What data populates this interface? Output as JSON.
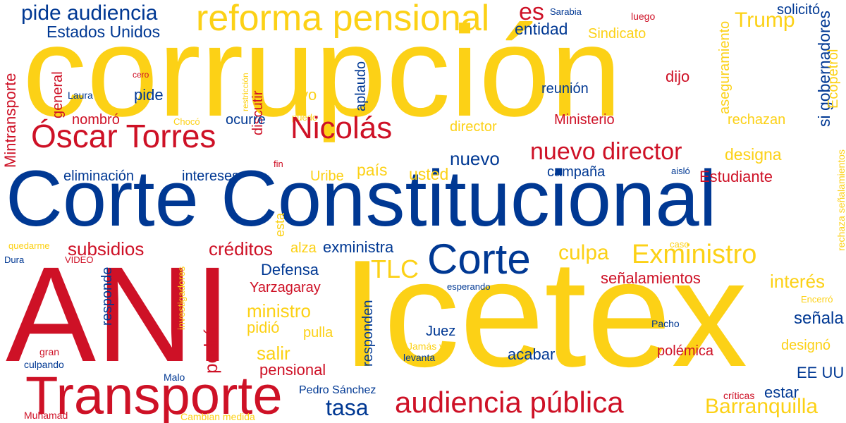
{
  "colors": {
    "yellow": "#fcd116",
    "blue": "#003893",
    "red": "#ce1126"
  },
  "words": {
    "corrupcion": "corrupción",
    "corte_constitucional": "Corte Constitucional",
    "ani": "ANI",
    "icetex": "Icetex",
    "transporte": "Transporte",
    "reforma_pensional": "reforma pensional",
    "pide_audiencia": "pide audiencia",
    "estados_unidos": "Estados Unidos",
    "es": "es",
    "sarabia": "Sarabia",
    "luego": "luego",
    "solicito": "solicitó",
    "trump": "Trump",
    "entidad": "entidad",
    "sindicato": "Sindicato",
    "mintransporte": "Mintransporte",
    "general": "general",
    "cero": "cero",
    "laura": "Laura",
    "pide": "pide",
    "restriccion": "restricción",
    "discutir": "discutir",
    "yo": "yo",
    "puedo": "puedo",
    "aplaudo": "aplaudo",
    "reunion": "reunión",
    "dijo": "dijo",
    "aseguramiento": "aseguramiento",
    "si_gobernadores": "si gobernadores",
    "ecopetrol": "Ecopetrol",
    "rechaza_senalamientos": "rechaza señalamientos",
    "nombro": "nombró",
    "choco": "Chocó",
    "ocurre": "ocurre",
    "oscar_torres": "Óscar Torres",
    "nicolas": "Nicolás",
    "director": "director",
    "nuevo": "nuevo",
    "nuevo_director": "nuevo director",
    "ministerio": "Ministerio",
    "rechazan": "rechazan",
    "designa": "designa",
    "eliminacion": "eliminación",
    "fin": "fin",
    "intereses": "intereses",
    "uribe": "Uribe",
    "pais": "país",
    "usted": "usted",
    "campana": "campaña",
    "aislo": "aisló",
    "estudiante": "Estudiante",
    "esta": "esta",
    "quedarme": "quedarme",
    "subsidios": "subsidios",
    "creditos": "créditos",
    "alza": "alza",
    "exministra": "exministra",
    "corte": "Corte",
    "culpa": "culpa",
    "exministro": "Exministro",
    "caso": "caso",
    "dura": "Dura",
    "video": "VIDEO",
    "responde": "responde",
    "investigadores": "investigadores",
    "defensa": "Defensa",
    "tlc": "TLC",
    "esperando": "esperando",
    "senalamientos": "señalamientos",
    "interes": "interés",
    "yarzagaray": "Yarzagaray",
    "ministro": "ministro",
    "pidio": "pidió",
    "pulla": "pulla",
    "responden": "responden",
    "encerro": "Encerró",
    "senala": "señala",
    "podra": "podrá",
    "juez": "Juez",
    "pacho": "Pacho",
    "designo": "designó",
    "salir": "salir",
    "jamas_vi": "Jamás vi",
    "levanta": "levanta",
    "acabar": "acabar",
    "polemica": "polémica",
    "gran": "gran",
    "culpando": "culpando",
    "malo": "Malo",
    "pensional": "pensional",
    "ee_uu": "EE UU",
    "pedro_sanchez": "Pedro Sánchez",
    "estar": "estar",
    "criticas": "críticas",
    "tasa": "tasa",
    "audiencia_publica": "audiencia pública",
    "barranquilla": "Barranquilla",
    "muhamad": "Muhamad",
    "cambian_medida": "Cambian medida"
  }
}
